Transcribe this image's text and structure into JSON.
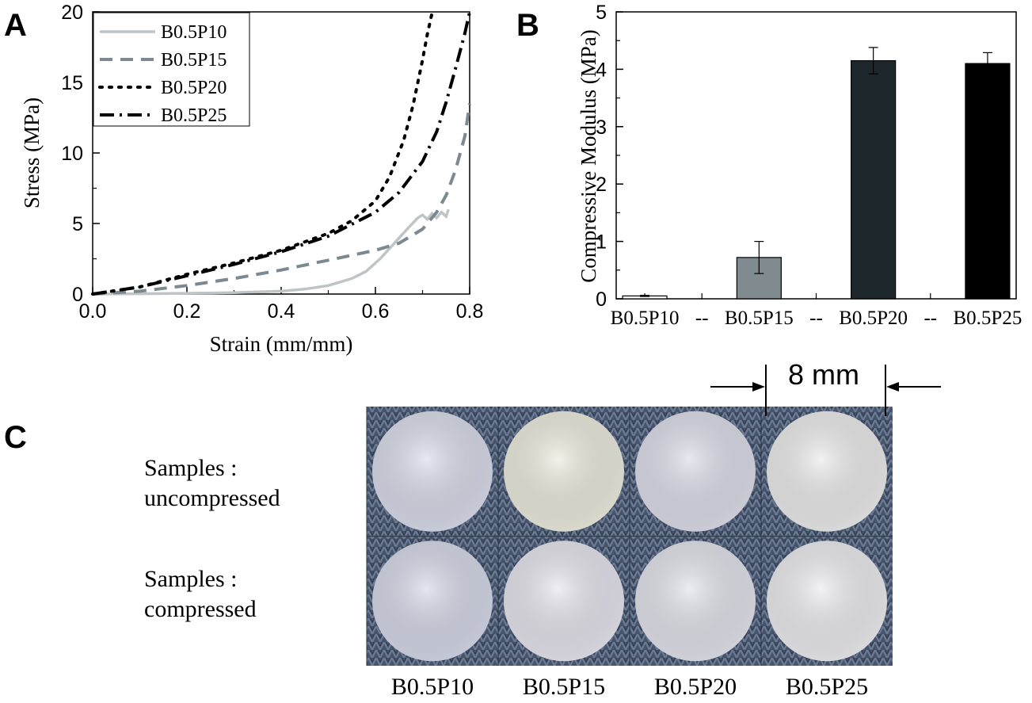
{
  "panels": {
    "a_letter": "A",
    "b_letter": "B",
    "c_letter": "C"
  },
  "chart_data": [
    {
      "panel": "A",
      "type": "line",
      "xlabel": "Strain (mm/mm)",
      "ylabel": "Stress (MPa)",
      "xlim": [
        0.0,
        0.8
      ],
      "ylim": [
        0,
        20
      ],
      "xticks": [
        "0.0",
        "0.2",
        "0.4",
        "0.6",
        "0.8"
      ],
      "yticks": [
        "0",
        "5",
        "10",
        "15",
        "20"
      ],
      "legend_position": "top-left",
      "series": [
        {
          "name": "B0.5P10",
          "color": "#bfc4c6",
          "style": "solid",
          "x": [
            0.0,
            0.1,
            0.2,
            0.3,
            0.4,
            0.45,
            0.5,
            0.55,
            0.58,
            0.61,
            0.64,
            0.67,
            0.69,
            0.7,
            0.71,
            0.72,
            0.73,
            0.74,
            0.75,
            0.755
          ],
          "y": [
            0.0,
            0.02,
            0.05,
            0.1,
            0.2,
            0.35,
            0.6,
            1.1,
            1.6,
            2.5,
            3.6,
            4.7,
            5.4,
            5.6,
            5.3,
            5.7,
            5.4,
            5.8,
            5.5,
            6.0
          ]
        },
        {
          "name": "B0.5P15",
          "color": "#7d8990",
          "style": "dashed",
          "x": [
            0.0,
            0.1,
            0.2,
            0.3,
            0.4,
            0.5,
            0.6,
            0.65,
            0.7,
            0.73,
            0.75,
            0.77,
            0.79,
            0.8
          ],
          "y": [
            0.0,
            0.2,
            0.6,
            1.1,
            1.7,
            2.4,
            3.1,
            3.6,
            4.6,
            5.8,
            7.0,
            8.8,
            11.2,
            13.5
          ]
        },
        {
          "name": "B0.5P20",
          "color": "#000000",
          "style": "dotted",
          "x": [
            0.0,
            0.1,
            0.2,
            0.3,
            0.4,
            0.5,
            0.55,
            0.6,
            0.63,
            0.66,
            0.68,
            0.7,
            0.71,
            0.72
          ],
          "y": [
            0.0,
            0.5,
            1.4,
            2.2,
            3.1,
            4.3,
            5.2,
            6.6,
            8.3,
            10.9,
            13.4,
            16.6,
            18.4,
            19.9
          ]
        },
        {
          "name": "B0.5P25",
          "color": "#000000",
          "style": "dashdot",
          "x": [
            0.0,
            0.1,
            0.2,
            0.3,
            0.4,
            0.5,
            0.6,
            0.65,
            0.7,
            0.73,
            0.75,
            0.77,
            0.79,
            0.8
          ],
          "y": [
            0.0,
            0.5,
            1.3,
            2.1,
            3.0,
            4.1,
            5.8,
            7.2,
            9.4,
            11.5,
            13.6,
            16.0,
            18.5,
            20.0
          ]
        }
      ]
    },
    {
      "panel": "B",
      "type": "bar",
      "ylabel": "Compressive Modulus (MPa)",
      "ylim": [
        0,
        5
      ],
      "yticks": [
        "0",
        "1",
        "2",
        "3",
        "4",
        "5"
      ],
      "categories": [
        "B0.5P10",
        "--",
        "B0.5P15",
        "--",
        "B0.5P20",
        "--",
        "B0.5P25"
      ],
      "bars": [
        {
          "name": "B0.5P10",
          "value": 0.05,
          "error": 0.01,
          "color": "#ffffff"
        },
        {
          "name": "B0.5P15",
          "value": 0.72,
          "error": 0.28,
          "color": "#7f8b8f"
        },
        {
          "name": "B0.5P20",
          "value": 4.15,
          "error": 0.23,
          "color": "#1e282c"
        },
        {
          "name": "B0.5P25",
          "value": 4.1,
          "error": 0.19,
          "color": "#000000"
        }
      ]
    }
  ],
  "panel_c": {
    "dimension_label": "8 mm",
    "row_labels": [
      {
        "line1": "Samples :",
        "line2": "uncompressed"
      },
      {
        "line1": "Samples :",
        "line2": "compressed"
      }
    ],
    "sample_labels": [
      "B0.5P10",
      "B0.5P15",
      "B0.5P20",
      "B0.5P25"
    ],
    "sample_colors": {
      "uncompressed": [
        "#d9dcea",
        "#ecebde",
        "#dcdde8",
        "#ebebeb"
      ],
      "compressed": [
        "#d5d8e8",
        "#e6e5ee",
        "#e2e3eb",
        "#ececef"
      ]
    }
  }
}
